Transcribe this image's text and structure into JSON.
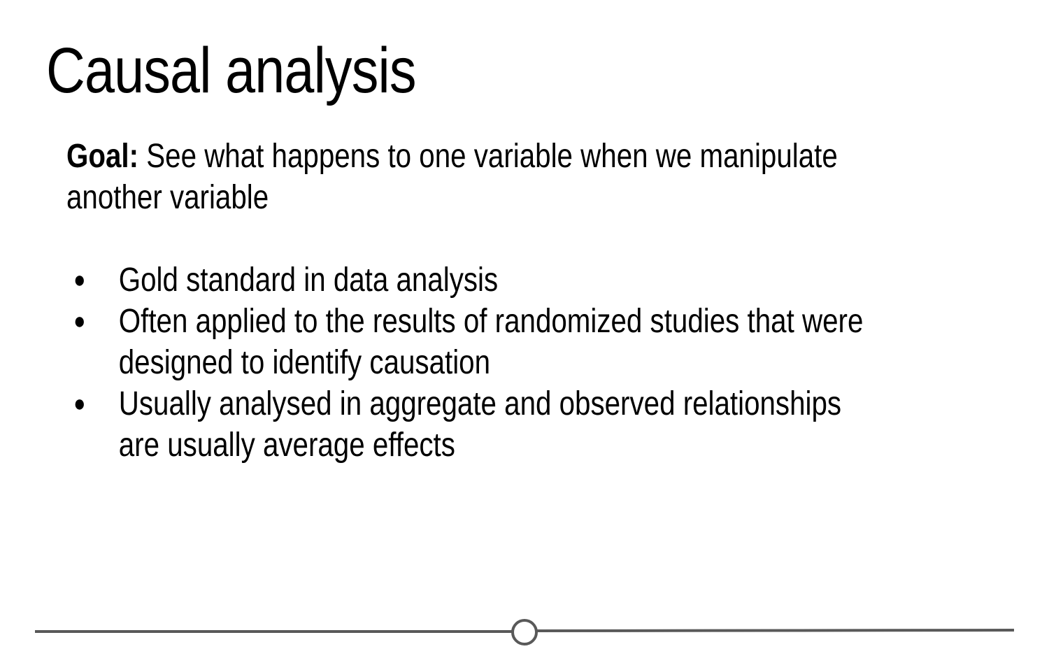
{
  "slide": {
    "title": "Causal analysis",
    "goal_label": "Goal:",
    "goal_text": " See what happens to one variable when we manipulate another variable",
    "bullets": [
      "Gold standard in data analysis",
      "Often applied to the results of randomized studies that were designed to identify causation",
      "Usually analysed in aggregate and observed relationships are usually average effects"
    ],
    "bullet_glyph": "●"
  },
  "colors": {
    "text": "#000000",
    "rule": "#595959",
    "background": "#ffffff"
  }
}
